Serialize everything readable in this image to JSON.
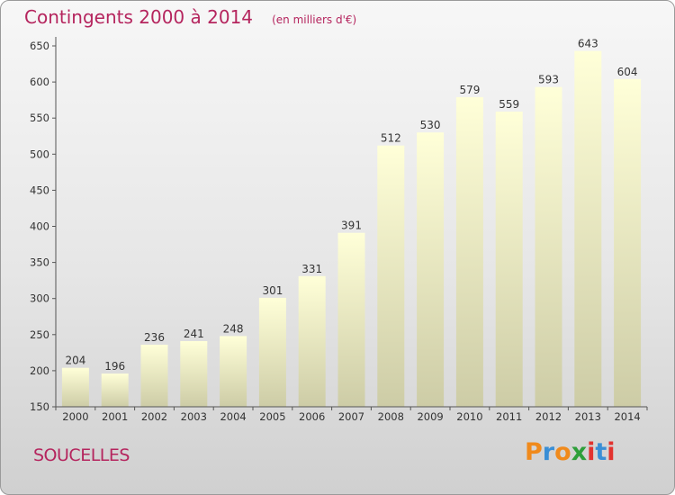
{
  "header": {
    "title": "Contingents 2000 à 2014",
    "unit": "(en milliers d'€)"
  },
  "footer": {
    "place": "SOUCELLES",
    "brand": "Proxiti"
  },
  "colors": {
    "title": "#b5255e",
    "bar_top": "#ffffd8",
    "bar_bottom": "#cdcca6",
    "axis": "#555555",
    "brand_letters": [
      "#f08a1c",
      "#3a8fd6",
      "#f08a1c",
      "#2e9f3a",
      "#e2332f",
      "#3a8fd6",
      "#e2332f"
    ]
  },
  "chart_data": {
    "type": "bar",
    "title": "Contingents 2000 à 2014",
    "subtitle": "(en milliers d'€)",
    "categories": [
      "2000",
      "2001",
      "2002",
      "2003",
      "2004",
      "2005",
      "2006",
      "2007",
      "2008",
      "2009",
      "2010",
      "2011",
      "2012",
      "2013",
      "2014"
    ],
    "values": [
      204,
      196,
      236,
      241,
      248,
      301,
      331,
      391,
      512,
      530,
      579,
      559,
      593,
      643,
      604
    ],
    "ylim": [
      150,
      650
    ],
    "yticks": [
      150,
      200,
      250,
      300,
      350,
      400,
      450,
      500,
      550,
      600,
      650
    ],
    "grid": false,
    "data_labels": true
  }
}
